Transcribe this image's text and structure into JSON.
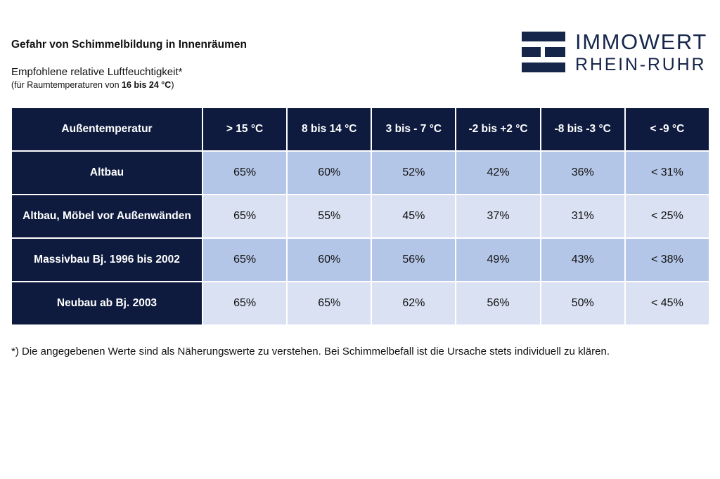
{
  "title": "Gefahr von Schimmelbildung in Innenräumen",
  "subtitle": "Empfohlene relative Luftfeuchtigkeit*",
  "note_prefix": "(für Raumtemperaturen von ",
  "note_bold": "16 bis 24 °C",
  "note_suffix": ")",
  "logo": {
    "line1": "IMMOWERT",
    "line2": "RHEIN-RUHR",
    "color": "#16264a"
  },
  "table": {
    "header_first": "Außentemperatur",
    "columns": [
      "> 15 °C",
      "8 bis 14 °C",
      "3 bis - 7 °C",
      "-2 bis +2 °C",
      "-8 bis -3 °C",
      "< -9 °C"
    ],
    "rows": [
      {
        "label": "Altbau",
        "values": [
          "65%",
          "60%",
          "52%",
          "42%",
          "36%",
          "< 31%"
        ]
      },
      {
        "label": "Altbau, Möbel vor Außenwänden",
        "values": [
          "65%",
          "55%",
          "45%",
          "37%",
          "31%",
          "< 25%"
        ]
      },
      {
        "label": "Massivbau Bj. 1996 bis 2002",
        "values": [
          "65%",
          "60%",
          "56%",
          "49%",
          "43%",
          "< 38%"
        ]
      },
      {
        "label": "Neubau ab Bj. 2003",
        "values": [
          "65%",
          "65%",
          "62%",
          "56%",
          "50%",
          "< 45%"
        ]
      }
    ],
    "colors": {
      "header_bg": "#0e1b3f",
      "row_light": "#d9e1f2",
      "row_mid": "#b4c6e7"
    }
  },
  "footnote": "*) Die angegebenen Werte sind als Näherungswerte zu verstehen. Bei Schimmelbefall ist die Ursache stets individuell zu klären."
}
